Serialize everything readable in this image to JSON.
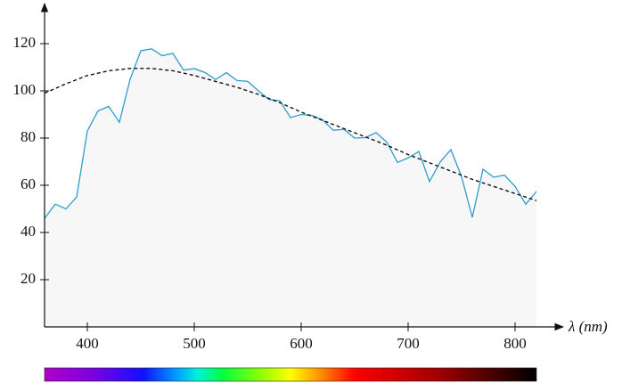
{
  "chart_data": {
    "type": "line",
    "x_label": "λ (nm)",
    "xlim": [
      360,
      845
    ],
    "ylim": [
      0,
      137
    ],
    "xticks": [
      400,
      500,
      600,
      700,
      800
    ],
    "yticks": [
      20,
      40,
      60,
      80,
      100,
      120
    ],
    "series": [
      {
        "color": "#2e9ccb",
        "fill": "#f7f7f7",
        "dash": false,
        "x": [
          360,
          370,
          380,
          390,
          400,
          410,
          420,
          430,
          440,
          450,
          460,
          470,
          480,
          490,
          500,
          510,
          520,
          530,
          540,
          550,
          560,
          570,
          580,
          590,
          600,
          610,
          620,
          630,
          640,
          650,
          660,
          670,
          680,
          690,
          700,
          710,
          720,
          730,
          740,
          750,
          760,
          770,
          780,
          790,
          800,
          810,
          820
        ],
        "values": [
          46,
          52,
          50,
          55,
          83,
          91.5,
          93.4,
          86.7,
          104.9,
          117,
          117.8,
          114.9,
          115.9,
          108.8,
          109.4,
          107.8,
          104.8,
          107.7,
          104.4,
          104,
          100,
          96.3,
          95.8,
          88.7,
          90,
          89.6,
          87.7,
          83.3,
          83.7,
          80,
          80.2,
          82.3,
          78.3,
          69.7,
          71.6,
          74.3,
          61.6,
          69.9,
          75.1,
          63.6,
          46.4,
          66.8,
          63.4,
          64.3,
          59.5,
          52,
          57.4
        ]
      },
      {
        "color": "#111111",
        "dash": true,
        "x": [
          360,
          380,
          400,
          420,
          440,
          460,
          480,
          500,
          520,
          540,
          560,
          580,
          600,
          620,
          640,
          660,
          680,
          700,
          720,
          740,
          760,
          780,
          800,
          820
        ],
        "values": [
          99,
          103,
          106.5,
          108.5,
          109.5,
          109.5,
          108.5,
          106.5,
          104,
          101.5,
          98.5,
          95,
          91,
          87.5,
          84,
          80.5,
          77,
          73,
          69.5,
          66,
          62.5,
          59.5,
          56.5,
          53.5
        ]
      }
    ]
  }
}
